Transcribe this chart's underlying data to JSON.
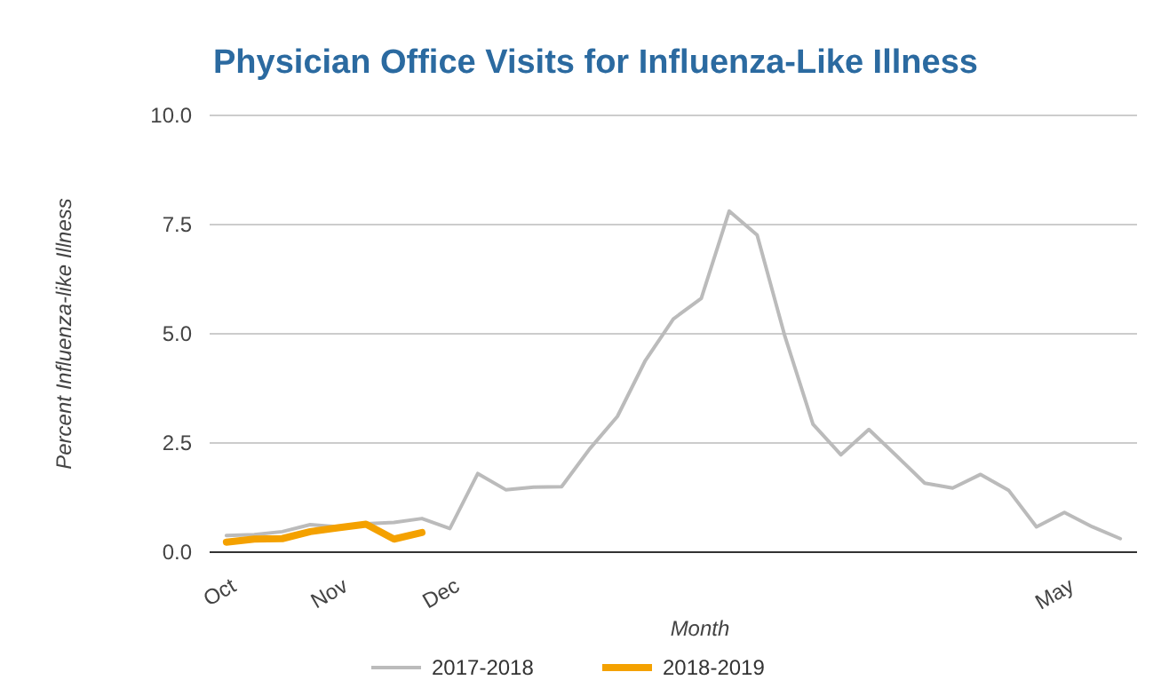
{
  "chart_data": {
    "type": "line",
    "title": "Physician Office Visits for Influenza-Like Illness",
    "xlabel": "Month",
    "ylabel": "Percent Influenza-like Illness",
    "categories": [
      "Oct",
      null,
      null,
      null,
      "Nov",
      null,
      null,
      null,
      "Dec",
      null,
      null,
      null,
      null,
      null,
      null,
      null,
      null,
      null,
      null,
      null,
      null,
      null,
      null,
      null,
      null,
      null,
      null,
      null,
      null,
      null,
      "May",
      null,
      null
    ],
    "series": [
      {
        "name": "2017-2018",
        "color": "#bbbbbb",
        "values": [
          0.38,
          0.4,
          0.47,
          0.63,
          0.58,
          0.65,
          0.68,
          0.77,
          0.54,
          1.8,
          1.43,
          1.49,
          1.5,
          2.36,
          3.11,
          4.39,
          5.34,
          5.81,
          7.81,
          7.26,
          4.93,
          2.93,
          2.23,
          2.81,
          2.2,
          1.58,
          1.47,
          1.78,
          1.42,
          0.58,
          0.91,
          0.58,
          0.31
        ]
      },
      {
        "name": "2018-2019",
        "color": "#f4a100",
        "values": [
          0.23,
          0.3,
          0.31,
          0.47,
          0.56,
          0.64,
          0.3,
          0.45,
          null,
          null,
          null,
          null,
          null,
          null,
          null,
          null,
          null,
          null,
          null,
          null,
          null,
          null,
          null,
          null,
          null,
          null,
          null,
          null,
          null,
          null,
          null,
          null,
          null
        ]
      }
    ],
    "ylim": [
      0,
      10
    ],
    "yticks": [
      {
        "value": 0,
        "label": "0.0"
      },
      {
        "value": 2.5,
        "label": "2.5"
      },
      {
        "value": 5,
        "label": "5.0"
      },
      {
        "value": 7.5,
        "label": "7.5"
      },
      {
        "value": 10,
        "label": "10.0"
      }
    ],
    "grid": "y",
    "legend": "bottom",
    "marker": "none"
  }
}
